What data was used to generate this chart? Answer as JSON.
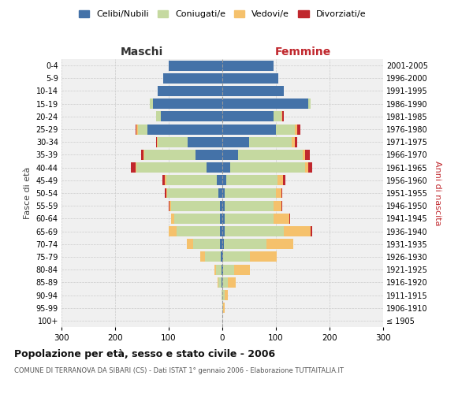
{
  "age_groups": [
    "100+",
    "95-99",
    "90-94",
    "85-89",
    "80-84",
    "75-79",
    "70-74",
    "65-69",
    "60-64",
    "55-59",
    "50-54",
    "45-49",
    "40-44",
    "35-39",
    "30-34",
    "25-29",
    "20-24",
    "15-19",
    "10-14",
    "5-9",
    "0-4"
  ],
  "birth_years": [
    "≤ 1905",
    "1906-1910",
    "1911-1915",
    "1916-1920",
    "1921-1925",
    "1926-1930",
    "1931-1935",
    "1936-1940",
    "1941-1945",
    "1946-1950",
    "1951-1955",
    "1956-1960",
    "1961-1965",
    "1966-1970",
    "1971-1975",
    "1976-1980",
    "1981-1985",
    "1986-1990",
    "1991-1995",
    "1996-2000",
    "2001-2005"
  ],
  "maschi": {
    "celibi": [
      0,
      0,
      0,
      2,
      2,
      3,
      4,
      5,
      5,
      5,
      8,
      10,
      30,
      50,
      65,
      140,
      115,
      130,
      120,
      110,
      100
    ],
    "coniugati": [
      0,
      0,
      2,
      5,
      10,
      30,
      50,
      80,
      85,
      90,
      95,
      95,
      130,
      95,
      55,
      18,
      8,
      5,
      0,
      0,
      0
    ],
    "vedovi": [
      0,
      0,
      0,
      2,
      3,
      8,
      12,
      15,
      5,
      3,
      2,
      2,
      2,
      2,
      2,
      2,
      0,
      0,
      0,
      0,
      0
    ],
    "divorziati": [
      0,
      0,
      0,
      0,
      0,
      0,
      0,
      0,
      0,
      2,
      2,
      5,
      8,
      5,
      2,
      2,
      0,
      0,
      0,
      0,
      0
    ]
  },
  "femmine": {
    "nubili": [
      0,
      0,
      0,
      0,
      2,
      2,
      3,
      5,
      5,
      5,
      5,
      8,
      15,
      30,
      50,
      100,
      95,
      160,
      115,
      105,
      95
    ],
    "coniugate": [
      0,
      2,
      5,
      10,
      20,
      50,
      80,
      110,
      90,
      90,
      95,
      95,
      140,
      120,
      80,
      35,
      15,
      5,
      0,
      0,
      0
    ],
    "vedove": [
      0,
      2,
      5,
      15,
      30,
      50,
      50,
      50,
      30,
      15,
      10,
      10,
      5,
      5,
      5,
      5,
      2,
      0,
      0,
      0,
      0
    ],
    "divorziate": [
      0,
      0,
      0,
      0,
      0,
      0,
      0,
      2,
      2,
      2,
      2,
      5,
      8,
      8,
      5,
      5,
      2,
      0,
      0,
      0,
      0
    ]
  },
  "colors": {
    "celibi": "#4472a8",
    "coniugati": "#c5d9a0",
    "vedovi": "#f5c16c",
    "divorziati": "#c0272d"
  },
  "xlim": 300,
  "title": "Popolazione per età, sesso e stato civile - 2006",
  "subtitle": "COMUNE DI TERRANOVA DA SIBARI (CS) - Dati ISTAT 1° gennaio 2006 - Elaborazione TUTTAITALIA.IT",
  "ylabel_left": "Fasce di età",
  "ylabel_right": "Anni di nascita",
  "xlabel_left": "Maschi",
  "xlabel_right": "Femmine",
  "background_color": "#ffffff",
  "grid_color": "#cccccc"
}
